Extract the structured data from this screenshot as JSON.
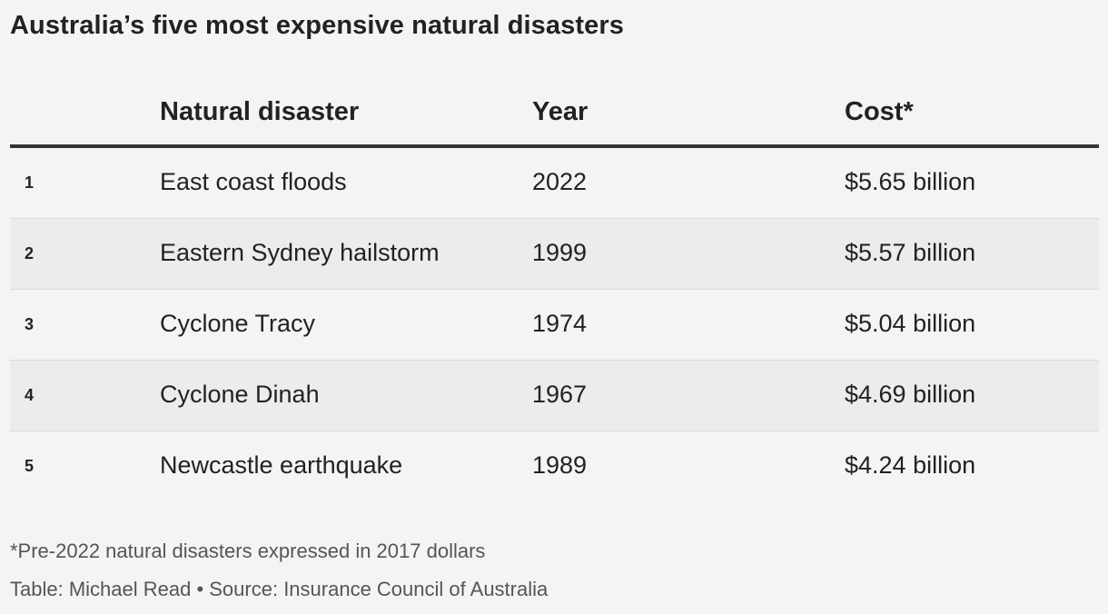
{
  "title": "Australia’s five most expensive natural disasters",
  "chart_data": {
    "type": "table",
    "columns": [
      "",
      "Natural disaster",
      "Year",
      "Cost*"
    ],
    "rows": [
      {
        "rank": "1",
        "disaster": "East coast floods",
        "year": "2022",
        "cost": "$5.65 billion"
      },
      {
        "rank": "2",
        "disaster": "Eastern Sydney hailstorm",
        "year": "1999",
        "cost": "$5.57 billion"
      },
      {
        "rank": "3",
        "disaster": "Cyclone Tracy",
        "year": "1974",
        "cost": "$5.04 billion"
      },
      {
        "rank": "4",
        "disaster": "Cyclone Dinah",
        "year": "1967",
        "cost": "$4.69 billion"
      },
      {
        "rank": "5",
        "disaster": "Newcastle earthquake",
        "year": "1989",
        "cost": "$4.24 billion"
      }
    ]
  },
  "footnote": "*Pre-2022 natural disasters expressed in 2017 dollars",
  "credit": "Table: Michael Read • Source: Insurance Council of Australia",
  "colors": {
    "background": "#f4f4f4",
    "alt_row": "#ececec",
    "text": "#222222",
    "header_rule": "#333333"
  }
}
